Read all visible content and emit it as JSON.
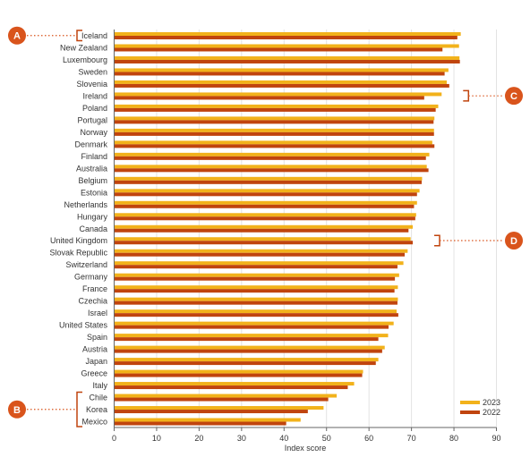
{
  "chart_data": {
    "type": "bar",
    "orientation": "horizontal",
    "categories": [
      "Iceland",
      "New Zealand",
      "Luxembourg",
      "Sweden",
      "Slovenia",
      "Ireland",
      "Poland",
      "Portugal",
      "Norway",
      "Denmark",
      "Finland",
      "Australia",
      "Belgium",
      "Estonia",
      "Netherlands",
      "Hungary",
      "Canada",
      "United Kingdom",
      "Slovak Republic",
      "Switzerland",
      "Germany",
      "France",
      "Czechia",
      "Israel",
      "United States",
      "Spain",
      "Austria",
      "Japan",
      "Greece",
      "Italy",
      "Chile",
      "Korea",
      "Mexico"
    ],
    "series": [
      {
        "name": "2023",
        "color": "#f2b21b",
        "values": [
          81.6,
          81.2,
          81.3,
          78.7,
          78.3,
          77.1,
          76.3,
          75.4,
          75.3,
          74.9,
          74.2,
          73.6,
          72.5,
          71.9,
          71.3,
          71.1,
          70.3,
          69.8,
          69.1,
          68.1,
          67.1,
          66.8,
          66.8,
          66.5,
          65.8,
          64.5,
          63.7,
          62.2,
          58.6,
          56.5,
          52.4,
          49.3,
          43.9
        ]
      },
      {
        "name": "2022",
        "color": "#c0440e",
        "values": [
          80.8,
          77.3,
          81.4,
          77.8,
          78.9,
          73.0,
          75.7,
          75.2,
          75.3,
          75.4,
          73.4,
          74.0,
          72.4,
          71.3,
          70.6,
          70.9,
          69.3,
          70.3,
          68.4,
          66.7,
          66.1,
          66.0,
          66.7,
          66.9,
          64.6,
          62.2,
          63.1,
          61.6,
          58.4,
          55.0,
          50.4,
          45.6,
          40.5
        ]
      }
    ],
    "xlabel": "Index score",
    "xlim": [
      0,
      90
    ],
    "xticks": [
      0,
      10,
      20,
      30,
      40,
      50,
      60,
      70,
      80,
      90
    ],
    "grid": "vertical",
    "legend_position": "bottom-right",
    "annotations": [
      {
        "letter": "A",
        "covers": [
          "Iceland"
        ],
        "side": "left"
      },
      {
        "letter": "B",
        "covers": [
          "Chile",
          "Korea",
          "Mexico"
        ],
        "side": "left"
      },
      {
        "letter": "C",
        "covers": [
          "Ireland"
        ],
        "side": "right"
      },
      {
        "letter": "D",
        "covers": [
          "United Kingdom"
        ],
        "side": "right"
      }
    ],
    "colors": {
      "marker": "#d9541c",
      "bracket": "#c0440e",
      "grid": "#e3e3e3",
      "axis": "#666666",
      "text": "#333333"
    }
  }
}
